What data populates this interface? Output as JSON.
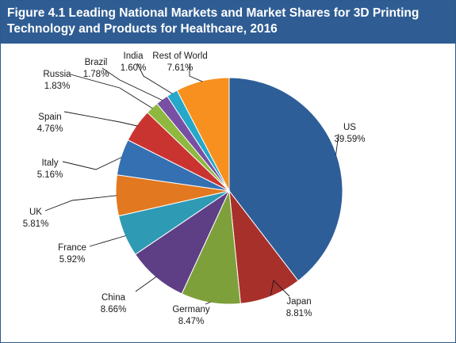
{
  "chart_data": {
    "type": "pie",
    "title": "Figure 4.1 Leading National Markets and Market Shares for 3D Printing Technology and Products for Healthcare, 2016",
    "unit": "%",
    "start_angle_deg": 0,
    "direction": "clockwise",
    "slices": [
      {
        "label": "US",
        "value": 39.59,
        "value_text": "39.59%",
        "color": "#2e5e98"
      },
      {
        "label": "Japan",
        "value": 8.81,
        "value_text": "8.81%",
        "color": "#a8302b"
      },
      {
        "label": "Germany",
        "value": 8.47,
        "value_text": "8.47%",
        "color": "#7ea03a"
      },
      {
        "label": "China",
        "value": 8.66,
        "value_text": "8.66%",
        "color": "#5e3f86"
      },
      {
        "label": "France",
        "value": 5.92,
        "value_text": "5.92%",
        "color": "#2f9ab4"
      },
      {
        "label": "UK",
        "value": 5.81,
        "value_text": "5.81%",
        "color": "#e2781f"
      },
      {
        "label": "Italy",
        "value": 5.16,
        "value_text": "5.16%",
        "color": "#3570b3"
      },
      {
        "label": "Spain",
        "value": 4.76,
        "value_text": "4.76%",
        "color": "#c93431"
      },
      {
        "label": "Russia",
        "value": 1.83,
        "value_text": "1.83%",
        "color": "#8fb83f"
      },
      {
        "label": "Brazil",
        "value": 1.78,
        "value_text": "1.78%",
        "color": "#7750a3"
      },
      {
        "label": "India",
        "value": 1.6,
        "value_text": "1.60%",
        "color": "#25a8c9"
      },
      {
        "label": "Rest of World",
        "value": 7.61,
        "value_text": "7.61%",
        "color": "#f7901e"
      }
    ]
  }
}
